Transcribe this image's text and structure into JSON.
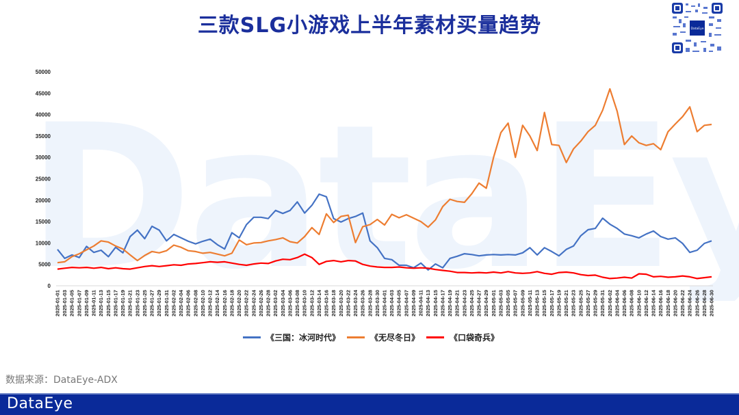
{
  "header": {
    "title": "三款SLG小游戏上半年素材买量趋势",
    "qr_label": "DataEye"
  },
  "watermark": "DataEye",
  "source": "数据来源：DataEye-ADX",
  "footer": {
    "logo": "DataEye"
  },
  "colors": {
    "title": "#1b2f9c",
    "series1": "#4472c4",
    "series2": "#ed7d31",
    "series3": "#ff0000",
    "footer": "#0a2a99"
  },
  "legend": [
    {
      "label": "《三国：冰河时代》",
      "color": "#4472c4"
    },
    {
      "label": "《无尽冬日》",
      "color": "#ed7d31"
    },
    {
      "label": "《口袋奇兵》",
      "color": "#ff0000"
    }
  ],
  "chart_data": {
    "type": "line",
    "title": "三款SLG小游戏上半年素材买量趋势",
    "xlabel": "",
    "ylabel": "",
    "ylim": [
      0,
      50000
    ],
    "yticks": [
      0,
      5000,
      10000,
      15000,
      20000,
      25000,
      30000,
      35000,
      40000,
      45000,
      50000
    ],
    "grid": false,
    "legend_position": "bottom",
    "x": [
      "2025-01-01",
      "2025-01-03",
      "2025-01-05",
      "2025-01-07",
      "2025-01-09",
      "2025-01-11",
      "2025-01-13",
      "2025-01-15",
      "2025-01-17",
      "2025-01-19",
      "2025-01-21",
      "2025-01-23",
      "2025-01-25",
      "2025-01-27",
      "2025-01-29",
      "2025-01-31",
      "2025-02-02",
      "2025-02-04",
      "2025-02-06",
      "2025-02-08",
      "2025-02-10",
      "2025-02-12",
      "2025-02-14",
      "2025-02-16",
      "2025-02-18",
      "2025-02-20",
      "2025-02-22",
      "2025-02-24",
      "2025-02-26",
      "2025-02-28",
      "2025-03-02",
      "2025-03-04",
      "2025-03-06",
      "2025-03-08",
      "2025-03-10",
      "2025-03-12",
      "2025-03-14",
      "2025-03-16",
      "2025-03-18",
      "2025-03-20",
      "2025-03-22",
      "2025-03-24",
      "2025-03-26",
      "2025-03-28",
      "2025-03-30",
      "2025-04-01",
      "2025-04-03",
      "2025-04-05",
      "2025-04-07",
      "2025-04-09",
      "2025-04-11",
      "2025-04-13",
      "2025-04-15",
      "2025-04-17",
      "2025-04-19",
      "2025-04-21",
      "2025-04-23",
      "2025-04-25",
      "2025-04-27",
      "2025-04-29",
      "2025-05-01",
      "2025-05-03",
      "2025-05-05",
      "2025-05-07",
      "2025-05-09",
      "2025-05-11",
      "2025-05-13",
      "2025-05-15",
      "2025-05-17",
      "2025-05-19",
      "2025-05-21",
      "2025-05-23",
      "2025-05-25",
      "2025-05-27",
      "2025-05-29",
      "2025-05-31",
      "2025-06-02",
      "2025-06-04",
      "2025-06-06",
      "2025-06-08",
      "2025-06-10",
      "2025-06-12",
      "2025-06-14",
      "2025-06-16",
      "2025-06-18",
      "2025-06-20",
      "2025-06-22",
      "2025-06-24",
      "2025-06-26",
      "2025-06-28",
      "2025-06-30"
    ],
    "series": [
      {
        "name": "《三国：冰河时代》",
        "color": "#4472c4",
        "values": [
          8500,
          6400,
          7200,
          6600,
          9200,
          7800,
          8300,
          6800,
          9000,
          7700,
          11500,
          13000,
          11000,
          13900,
          13000,
          10500,
          12000,
          11200,
          10400,
          9800,
          10400,
          10900,
          9600,
          8600,
          12400,
          11200,
          14300,
          16000,
          16000,
          15700,
          17600,
          16900,
          17600,
          19600,
          17000,
          18800,
          21400,
          20800,
          15700,
          14900,
          15700,
          16200,
          17000,
          10500,
          8900,
          6400,
          6100,
          4800,
          4800,
          4200,
          5300,
          3700,
          5100,
          4200,
          6400,
          6900,
          7500,
          7300,
          7000,
          7200,
          7300,
          7200,
          7300,
          7200,
          7700,
          8900,
          7200,
          8900,
          8000,
          7000,
          8500,
          9300,
          11700,
          13100,
          13400,
          15800,
          14400,
          13400,
          12100,
          11700,
          11200,
          12100,
          12800,
          11500,
          10900,
          11200,
          9900,
          7800,
          8300,
          9900,
          10500
        ]
      },
      {
        "name": "《无尽冬日》",
        "color": "#ed7d31",
        "values": [
          5400,
          5600,
          6800,
          7500,
          8400,
          9300,
          10500,
          10200,
          9300,
          8600,
          7200,
          5900,
          7100,
          8000,
          7700,
          8200,
          9500,
          9000,
          8200,
          8000,
          7600,
          7800,
          7400,
          7000,
          7600,
          10700,
          9600,
          10000,
          10100,
          10500,
          10800,
          11200,
          10300,
          10000,
          11500,
          13600,
          12000,
          16800,
          14800,
          16200,
          16500,
          10100,
          13800,
          14300,
          15500,
          14200,
          16700,
          15900,
          16600,
          15800,
          15000,
          13700,
          15400,
          18500,
          20200,
          19700,
          19500,
          21500,
          24000,
          22800,
          30000,
          35800,
          38000,
          30000,
          37500,
          35000,
          31600,
          40500,
          33000,
          32800,
          28800,
          32000,
          33800,
          36000,
          37500,
          41000,
          46000,
          40800,
          33000,
          35000,
          33400,
          32800,
          33200,
          31800,
          36000,
          37800,
          39500,
          41800,
          36000,
          37500,
          37700
        ]
      },
      {
        "name": "《口袋奇兵》",
        "color": "#ff0000",
        "values": [
          3900,
          4100,
          4300,
          4200,
          4300,
          4100,
          4300,
          4000,
          4200,
          4000,
          3900,
          4200,
          4500,
          4700,
          4500,
          4700,
          4900,
          4800,
          5100,
          5200,
          5400,
          5600,
          5500,
          5600,
          5300,
          5000,
          4800,
          5100,
          5300,
          5200,
          5800,
          6200,
          6100,
          6600,
          7400,
          6600,
          5000,
          5700,
          5900,
          5600,
          5900,
          5800,
          5000,
          4600,
          4400,
          4300,
          4300,
          4400,
          4200,
          4100,
          4200,
          4100,
          3800,
          3600,
          3400,
          3100,
          3100,
          3000,
          3100,
          3000,
          3200,
          3000,
          3300,
          3000,
          2900,
          3000,
          3300,
          2900,
          2700,
          3100,
          3200,
          3000,
          2600,
          2400,
          2500,
          2000,
          1700,
          1800,
          2000,
          1800,
          2800,
          2700,
          2100,
          2200,
          2000,
          2100,
          2300,
          2100,
          1700,
          1900,
          2100
        ]
      }
    ]
  }
}
